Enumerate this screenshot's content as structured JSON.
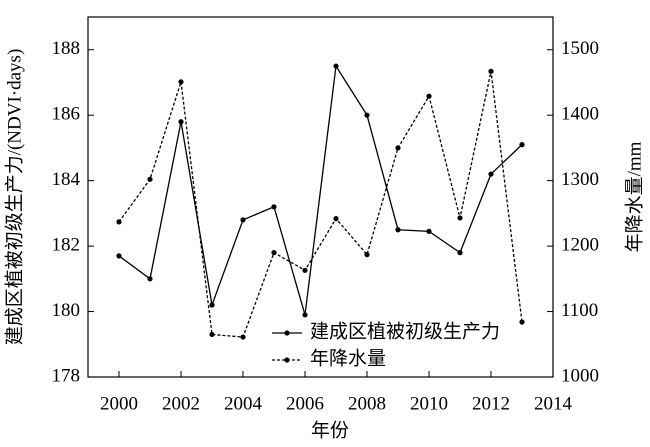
{
  "chart_data": {
    "type": "line",
    "x_label": "年份",
    "y_label": "建成区植被初级生产力/(NDVI·days)",
    "y2_label": "年降水量/mm",
    "x": [
      2000,
      2001,
      2002,
      2003,
      2004,
      2005,
      2006,
      2007,
      2008,
      2009,
      2010,
      2011,
      2012,
      2013
    ],
    "xlim": [
      1999,
      2014
    ],
    "xticks": [
      2000,
      2002,
      2004,
      2006,
      2008,
      2010,
      2012,
      2014
    ],
    "ylim": [
      178,
      189
    ],
    "yticks": [
      178,
      180,
      182,
      184,
      186,
      188
    ],
    "y2lim": [
      1000,
      1550
    ],
    "y2ticks": [
      1000,
      1100,
      1200,
      1300,
      1400,
      1500
    ],
    "legend": "lower right",
    "series": [
      {
        "name": "建成区植被初级生产力",
        "color": "#000000",
        "dash": "solid",
        "values": [
          181.7,
          181.0,
          185.8,
          180.2,
          182.8,
          183.2,
          179.9,
          187.5,
          186.0,
          182.5,
          182.45,
          181.8,
          184.2,
          185.1
        ]
      },
      {
        "name": "年降水量",
        "color": "#000000",
        "dash": "dashed",
        "axis": "y2",
        "values": [
          1237,
          1302,
          1451,
          1065,
          1061,
          1190,
          1163,
          1242,
          1187,
          1350,
          1429,
          1243,
          1467,
          1084
        ]
      }
    ]
  }
}
